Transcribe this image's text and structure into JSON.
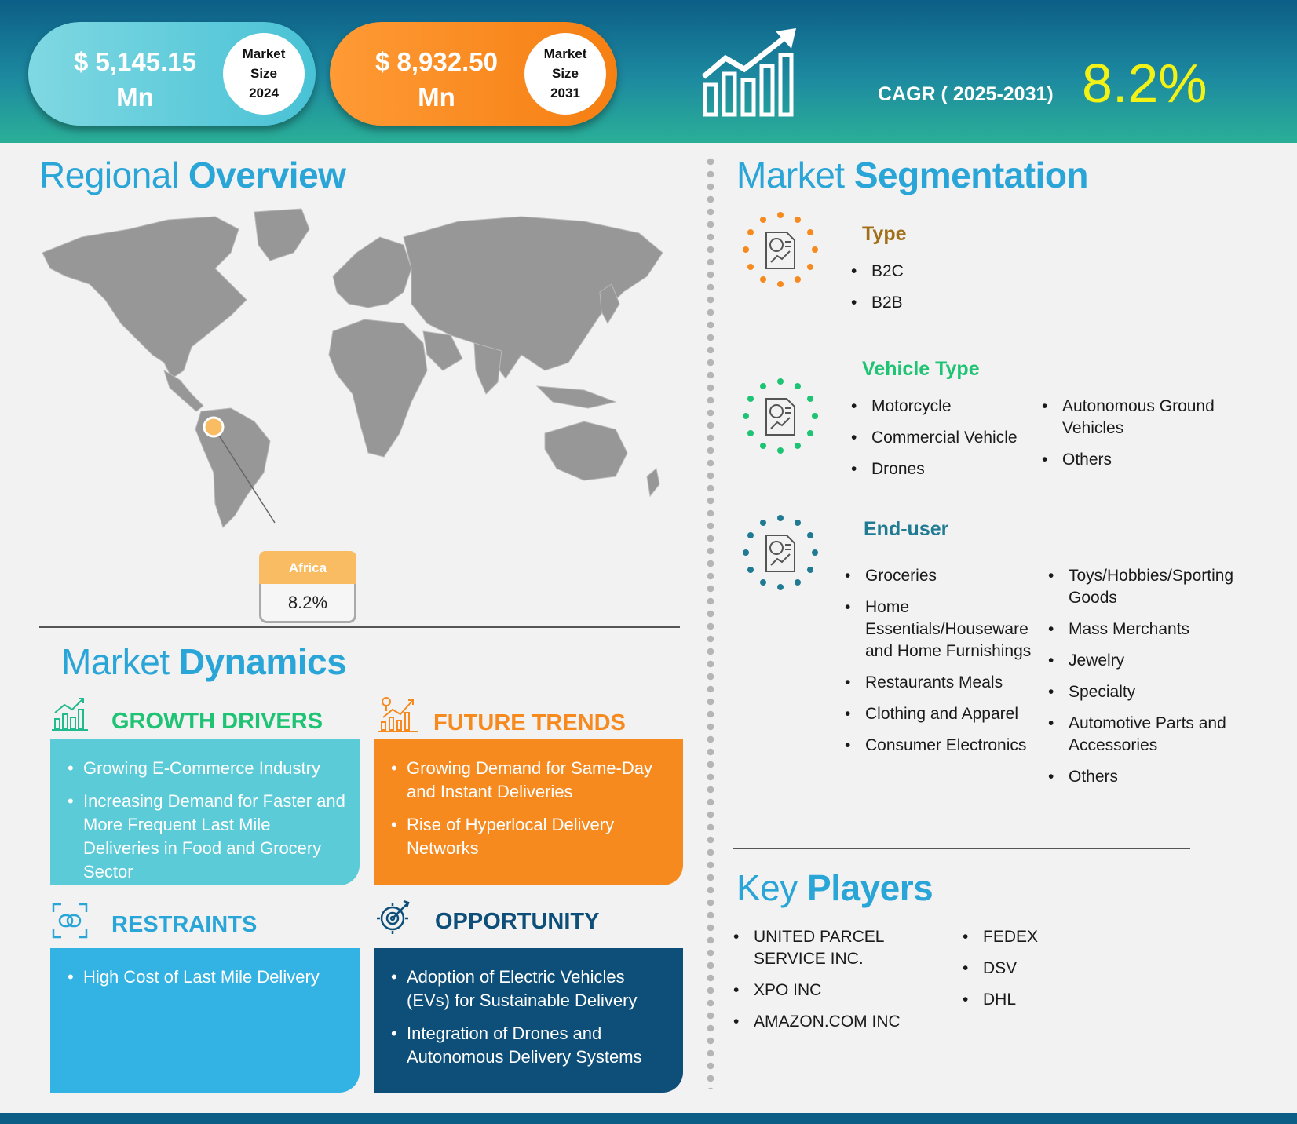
{
  "header": {
    "size_2024": {
      "amount": "$ 5,145.15",
      "unit": "Mn",
      "label_line1": "Market",
      "label_line2": "Size",
      "year": "2024"
    },
    "size_2031": {
      "amount": "$  8,932.50",
      "unit": "Mn",
      "label_line1": "Market",
      "label_line2": "Size",
      "year": "2031"
    },
    "cagr_label": "CAGR ( 2025-2031)",
    "cagr_value": "8.2%"
  },
  "regional": {
    "title_light": "Regional",
    "title_bold": "Overview",
    "callout_region": "Africa",
    "callout_value": "8.2%"
  },
  "dynamics": {
    "title_light": "Market",
    "title_bold": "Dynamics",
    "growth_drivers": {
      "heading": "GROWTH DRIVERS",
      "items": [
        "Growing E-Commerce Industry",
        "Increasing Demand for Faster and More Frequent Last Mile Deliveries in Food and Grocery Sector"
      ]
    },
    "future_trends": {
      "heading": "FUTURE TRENDS",
      "items": [
        "Growing Demand for Same-Day and Instant Deliveries",
        "Rise of Hyperlocal Delivery Networks"
      ]
    },
    "restraints": {
      "heading": "RESTRAINTS",
      "items": [
        "High Cost of Last Mile Delivery"
      ]
    },
    "opportunity": {
      "heading": "OPPORTUNITY",
      "items": [
        "Adoption of Electric Vehicles (EVs) for Sustainable Delivery",
        "Integration of Drones and Autonomous Delivery Systems"
      ]
    }
  },
  "segmentation": {
    "title_light": "Market",
    "title_bold": "Segmentation",
    "type": {
      "heading": "Type",
      "items": [
        "B2C",
        "B2B"
      ]
    },
    "vehicle_type": {
      "heading": "Vehicle Type",
      "col1": [
        "Motorcycle",
        "Commercial Vehicle",
        "Drones"
      ],
      "col2": [
        "Autonomous Ground Vehicles",
        "Others"
      ]
    },
    "end_user": {
      "heading": "End-user",
      "col1": [
        "Groceries",
        "Home Essentials/Houseware and Home Furnishings",
        "Restaurants Meals",
        "Clothing and Apparel",
        "Consumer Electronics"
      ],
      "col2": [
        "Toys/Hobbies/Sporting Goods",
        "Mass Merchants",
        "Jewelry",
        "Specialty",
        "Automotive Parts and Accessories",
        "Others"
      ]
    }
  },
  "key_players": {
    "title_light": "Key",
    "title_bold": "Players",
    "col1": [
      "UNITED PARCEL SERVICE INC.",
      "XPO INC",
      "AMAZON.COM INC"
    ],
    "col2": [
      "FEDEX",
      "DSV",
      "DHL"
    ]
  },
  "colors": {
    "accent_blue": "#2aa5d8",
    "orange": "#f78a1f",
    "teal": "#5ccbd8",
    "green": "#1fc374",
    "navy": "#0d4f79",
    "yellow": "#f3f216"
  }
}
